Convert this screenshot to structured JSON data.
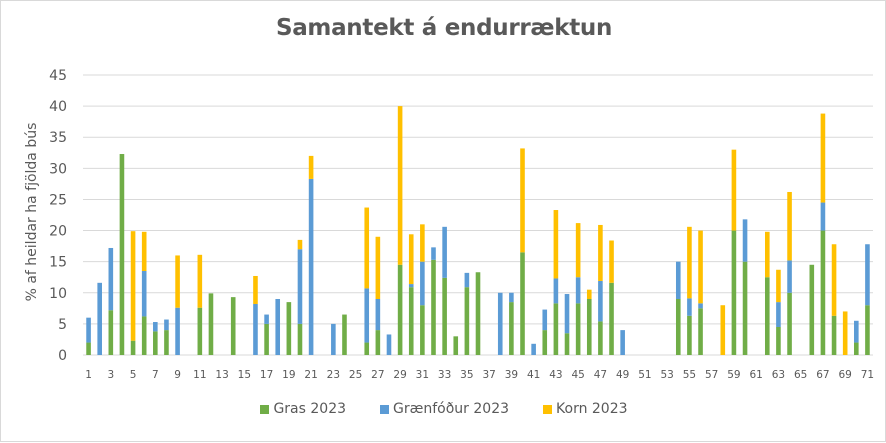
{
  "chart_data": {
    "type": "bar",
    "stacked": true,
    "title": "Samantekt á endurræktun",
    "xlabel": "",
    "ylabel": "% af heildar ha fjölda bús",
    "ylim": [
      0,
      45
    ],
    "yticks": [
      0,
      5,
      10,
      15,
      20,
      25,
      30,
      35,
      40,
      45
    ],
    "grid": true,
    "legend_position": "bottom",
    "categories": [
      1,
      2,
      3,
      4,
      5,
      6,
      7,
      8,
      9,
      10,
      11,
      12,
      13,
      14,
      15,
      16,
      17,
      18,
      19,
      20,
      21,
      22,
      23,
      24,
      25,
      26,
      27,
      28,
      29,
      30,
      31,
      32,
      33,
      34,
      35,
      36,
      37,
      38,
      39,
      40,
      41,
      42,
      43,
      44,
      45,
      46,
      47,
      48,
      49,
      50,
      51,
      52,
      53,
      54,
      55,
      56,
      57,
      58,
      59,
      60,
      61,
      62,
      63,
      64,
      65,
      66,
      67,
      68,
      69,
      70,
      71
    ],
    "xtick_labels": [
      1,
      3,
      5,
      7,
      9,
      11,
      13,
      15,
      17,
      19,
      21,
      23,
      25,
      27,
      29,
      31,
      33,
      35,
      37,
      39,
      41,
      43,
      45,
      47,
      49,
      51,
      53,
      55,
      57,
      59,
      61,
      63,
      65,
      67,
      69,
      71
    ],
    "series": [
      {
        "name": "Gras 2023",
        "color": "#70AD47",
        "values": [
          2,
          0,
          7.2,
          32.3,
          2.3,
          6.2,
          3.8,
          4,
          0,
          0,
          7.6,
          9.9,
          0,
          9.3,
          0,
          0,
          5,
          0,
          8.5,
          5,
          0,
          0,
          0,
          6.5,
          0,
          2,
          4,
          0,
          14.5,
          10.9,
          8,
          15.3,
          12.4,
          3,
          10.9,
          13.3,
          0,
          0,
          8.5,
          16.5,
          0,
          4,
          8.3,
          3.5,
          8.3,
          9,
          5.4,
          11.6,
          0,
          0,
          0,
          0,
          0,
          9,
          6.3,
          7.5,
          0,
          0,
          20,
          15,
          0,
          12.5,
          4.5,
          10,
          0,
          14.5,
          20,
          6.3,
          0,
          2,
          8
        ]
      },
      {
        "name": "Grænfóður 2023",
        "color": "#5B9BD5",
        "values": [
          4,
          11.6,
          10,
          0,
          0,
          7.3,
          1.5,
          1.7,
          7.6,
          0,
          0,
          0,
          0,
          0,
          0,
          8.2,
          1.5,
          9,
          0,
          12,
          28.3,
          0,
          5,
          0,
          0,
          8.7,
          5,
          3.3,
          0,
          0.5,
          7,
          2,
          8.2,
          0,
          2.3,
          0,
          0,
          10,
          1.5,
          0,
          1.8,
          3.3,
          4,
          6.3,
          4.2,
          0,
          6.5,
          0,
          4,
          0,
          0,
          0,
          0,
          6,
          2.8,
          0.8,
          0,
          0,
          0,
          6.8,
          0,
          0,
          4,
          5.2,
          0,
          0,
          4.5,
          0,
          0,
          3.5,
          9.8
        ]
      },
      {
        "name": "Korn 2023",
        "color": "#FFC000",
        "values": [
          0,
          0,
          0,
          0,
          17.6,
          6.3,
          0,
          0,
          8.4,
          0,
          8.5,
          0,
          0,
          0,
          0,
          4.5,
          0,
          0,
          0,
          1.5,
          3.7,
          0,
          0,
          0,
          0,
          13,
          10,
          0,
          25.5,
          8,
          6,
          0,
          0,
          0,
          0,
          0,
          0,
          0,
          0,
          16.7,
          0,
          0,
          11,
          0,
          8.7,
          1.5,
          9,
          6.8,
          0,
          0,
          0,
          0,
          0,
          0,
          11.5,
          11.7,
          0,
          8,
          13,
          0,
          0,
          7.3,
          5.2,
          11,
          0,
          0,
          14.3,
          11.5,
          7,
          0,
          0
        ]
      }
    ]
  },
  "legend": {
    "items": [
      {
        "label": "Gras 2023",
        "color": "#70AD47"
      },
      {
        "label": "Grænfóður 2023",
        "color": "#5B9BD5"
      },
      {
        "label": "Korn 2023",
        "color": "#FFC000"
      }
    ]
  }
}
